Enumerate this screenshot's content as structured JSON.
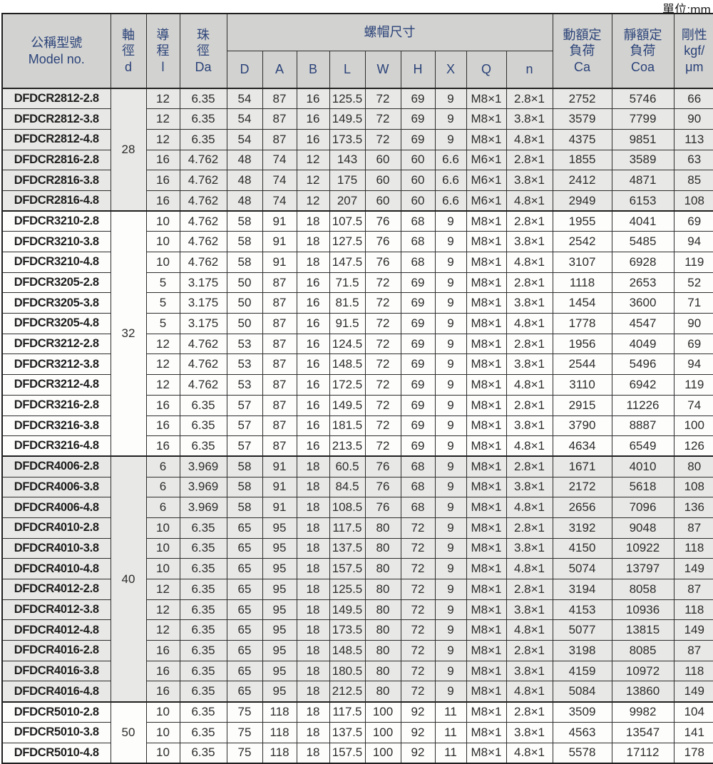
{
  "unit_label": "單位:mm",
  "header": {
    "model_zh": "公稱型號",
    "model_en": "Model no.",
    "shaft_lines": [
      "軸",
      "徑",
      "d"
    ],
    "lead_lines": [
      "導",
      "程",
      "l"
    ],
    "ball_lines": [
      "珠",
      "徑",
      "Da"
    ],
    "nut_group": "螺帽尺寸",
    "nut_cols": [
      "D",
      "A",
      "B",
      "L",
      "W",
      "H",
      "X",
      "Q",
      "n"
    ],
    "dynamic_lines": [
      "動額定",
      "負荷",
      "Ca"
    ],
    "static_lines": [
      "靜額定",
      "負荷",
      "Coa"
    ],
    "rigidity_lines": [
      "剛性",
      "kgf/",
      "μm"
    ]
  },
  "groups": [
    {
      "d": "28",
      "shade": "gray",
      "rows": [
        {
          "model": "DFDCR2812-2.8",
          "l": "12",
          "da": "6.35",
          "D": "54",
          "A": "87",
          "B": "16",
          "L": "125.5",
          "W": "72",
          "H": "69",
          "X": "9",
          "Q": "M8×1",
          "n": "2.8×1",
          "ca": "2752",
          "coa": "5746",
          "k": "66"
        },
        {
          "model": "DFDCR2812-3.8",
          "l": "12",
          "da": "6.35",
          "D": "54",
          "A": "87",
          "B": "16",
          "L": "149.5",
          "W": "72",
          "H": "69",
          "X": "9",
          "Q": "M8×1",
          "n": "3.8×1",
          "ca": "3579",
          "coa": "7799",
          "k": "90"
        },
        {
          "model": "DFDCR2812-4.8",
          "l": "12",
          "da": "6.35",
          "D": "54",
          "A": "87",
          "B": "16",
          "L": "173.5",
          "W": "72",
          "H": "69",
          "X": "9",
          "Q": "M8×1",
          "n": "4.8×1",
          "ca": "4375",
          "coa": "9851",
          "k": "113"
        },
        {
          "model": "DFDCR2816-2.8",
          "l": "16",
          "da": "4.762",
          "D": "48",
          "A": "74",
          "B": "12",
          "L": "143",
          "W": "60",
          "H": "60",
          "X": "6.6",
          "Q": "M6×1",
          "n": "2.8×1",
          "ca": "1855",
          "coa": "3589",
          "k": "63"
        },
        {
          "model": "DFDCR2816-3.8",
          "l": "16",
          "da": "4.762",
          "D": "48",
          "A": "74",
          "B": "12",
          "L": "175",
          "W": "60",
          "H": "60",
          "X": "6.6",
          "Q": "M6×1",
          "n": "3.8×1",
          "ca": "2412",
          "coa": "4871",
          "k": "85"
        },
        {
          "model": "DFDCR2816-4.8",
          "l": "16",
          "da": "4.762",
          "D": "48",
          "A": "74",
          "B": "12",
          "L": "207",
          "W": "60",
          "H": "60",
          "X": "6.6",
          "Q": "M6×1",
          "n": "4.8×1",
          "ca": "2949",
          "coa": "6153",
          "k": "108"
        }
      ]
    },
    {
      "d": "32",
      "shade": "white",
      "rows": [
        {
          "model": "DFDCR3210-2.8",
          "l": "10",
          "da": "4.762",
          "D": "58",
          "A": "91",
          "B": "18",
          "L": "107.5",
          "W": "76",
          "H": "68",
          "X": "9",
          "Q": "M8×1",
          "n": "2.8×1",
          "ca": "1955",
          "coa": "4041",
          "k": "69"
        },
        {
          "model": "DFDCR3210-3.8",
          "l": "10",
          "da": "4.762",
          "D": "58",
          "A": "91",
          "B": "18",
          "L": "127.5",
          "W": "76",
          "H": "68",
          "X": "9",
          "Q": "M8×1",
          "n": "3.8×1",
          "ca": "2542",
          "coa": "5485",
          "k": "94"
        },
        {
          "model": "DFDCR3210-4.8",
          "l": "10",
          "da": "4.762",
          "D": "58",
          "A": "91",
          "B": "18",
          "L": "147.5",
          "W": "76",
          "H": "68",
          "X": "9",
          "Q": "M8×1",
          "n": "4.8×1",
          "ca": "3107",
          "coa": "6928",
          "k": "119"
        },
        {
          "model": "DFDCR3205-2.8",
          "l": "5",
          "da": "3.175",
          "D": "50",
          "A": "87",
          "B": "16",
          "L": "71.5",
          "W": "72",
          "H": "69",
          "X": "9",
          "Q": "M8×1",
          "n": "2.8×1",
          "ca": "1118",
          "coa": "2653",
          "k": "52"
        },
        {
          "model": "DFDCR3205-3.8",
          "l": "5",
          "da": "3.175",
          "D": "50",
          "A": "87",
          "B": "16",
          "L": "81.5",
          "W": "72",
          "H": "69",
          "X": "9",
          "Q": "M8×1",
          "n": "3.8×1",
          "ca": "1454",
          "coa": "3600",
          "k": "71"
        },
        {
          "model": "DFDCR3205-4.8",
          "l": "5",
          "da": "3.175",
          "D": "50",
          "A": "87",
          "B": "16",
          "L": "91.5",
          "W": "72",
          "H": "69",
          "X": "9",
          "Q": "M8×1",
          "n": "4.8×1",
          "ca": "1778",
          "coa": "4547",
          "k": "90"
        },
        {
          "model": "DFDCR3212-2.8",
          "l": "12",
          "da": "4.762",
          "D": "53",
          "A": "87",
          "B": "16",
          "L": "124.5",
          "W": "72",
          "H": "69",
          "X": "9",
          "Q": "M8×1",
          "n": "2.8×1",
          "ca": "1956",
          "coa": "4049",
          "k": "69"
        },
        {
          "model": "DFDCR3212-3.8",
          "l": "12",
          "da": "4.762",
          "D": "53",
          "A": "87",
          "B": "16",
          "L": "148.5",
          "W": "72",
          "H": "69",
          "X": "9",
          "Q": "M8×1",
          "n": "3.8×1",
          "ca": "2544",
          "coa": "5496",
          "k": "94"
        },
        {
          "model": "DFDCR3212-4.8",
          "l": "12",
          "da": "4.762",
          "D": "53",
          "A": "87",
          "B": "16",
          "L": "172.5",
          "W": "72",
          "H": "69",
          "X": "9",
          "Q": "M8×1",
          "n": "4.8×1",
          "ca": "3110",
          "coa": "6942",
          "k": "119"
        },
        {
          "model": "DFDCR3216-2.8",
          "l": "16",
          "da": "6.35",
          "D": "57",
          "A": "87",
          "B": "16",
          "L": "149.5",
          "W": "72",
          "H": "69",
          "X": "9",
          "Q": "M8×1",
          "n": "2.8×1",
          "ca": "2915",
          "coa": "11226",
          "k": "74"
        },
        {
          "model": "DFDCR3216-3.8",
          "l": "16",
          "da": "6.35",
          "D": "57",
          "A": "87",
          "B": "16",
          "L": "181.5",
          "W": "72",
          "H": "69",
          "X": "9",
          "Q": "M8×1",
          "n": "3.8×1",
          "ca": "3790",
          "coa": "8887",
          "k": "100"
        },
        {
          "model": "DFDCR3216-4.8",
          "l": "16",
          "da": "6.35",
          "D": "57",
          "A": "87",
          "B": "16",
          "L": "213.5",
          "W": "72",
          "H": "69",
          "X": "9",
          "Q": "M8×1",
          "n": "4.8×1",
          "ca": "4634",
          "coa": "6549",
          "k": "126"
        }
      ]
    },
    {
      "d": "40",
      "shade": "gray",
      "rows": [
        {
          "model": "DFDCR4006-2.8",
          "l": "6",
          "da": "3.969",
          "D": "58",
          "A": "91",
          "B": "18",
          "L": "60.5",
          "W": "76",
          "H": "68",
          "X": "9",
          "Q": "M8×1",
          "n": "2.8×1",
          "ca": "1671",
          "coa": "4010",
          "k": "80"
        },
        {
          "model": "DFDCR4006-3.8",
          "l": "6",
          "da": "3.969",
          "D": "58",
          "A": "91",
          "B": "18",
          "L": "84.5",
          "W": "76",
          "H": "68",
          "X": "9",
          "Q": "M8×1",
          "n": "3.8×1",
          "ca": "2172",
          "coa": "5618",
          "k": "108"
        },
        {
          "model": "DFDCR4006-4.8",
          "l": "6",
          "da": "3.969",
          "D": "58",
          "A": "91",
          "B": "18",
          "L": "108.5",
          "W": "76",
          "H": "68",
          "X": "9",
          "Q": "M8×1",
          "n": "4.8×1",
          "ca": "2656",
          "coa": "7096",
          "k": "136"
        },
        {
          "model": "DFDCR4010-2.8",
          "l": "10",
          "da": "6.35",
          "D": "65",
          "A": "95",
          "B": "18",
          "L": "117.5",
          "W": "80",
          "H": "72",
          "X": "9",
          "Q": "M8×1",
          "n": "2.8×1",
          "ca": "3192",
          "coa": "9048",
          "k": "87"
        },
        {
          "model": "DFDCR4010-3.8",
          "l": "10",
          "da": "6.35",
          "D": "65",
          "A": "95",
          "B": "18",
          "L": "137.5",
          "W": "80",
          "H": "72",
          "X": "9",
          "Q": "M8×1",
          "n": "3.8×1",
          "ca": "4150",
          "coa": "10922",
          "k": "118"
        },
        {
          "model": "DFDCR4010-4.8",
          "l": "10",
          "da": "6.35",
          "D": "65",
          "A": "95",
          "B": "18",
          "L": "157.5",
          "W": "80",
          "H": "72",
          "X": "9",
          "Q": "M8×1",
          "n": "4.8×1",
          "ca": "5074",
          "coa": "13797",
          "k": "149"
        },
        {
          "model": "DFDCR4012-2.8",
          "l": "12",
          "da": "6.35",
          "D": "65",
          "A": "95",
          "B": "18",
          "L": "125.5",
          "W": "80",
          "H": "72",
          "X": "9",
          "Q": "M8×1",
          "n": "2.8×1",
          "ca": "3194",
          "coa": "8058",
          "k": "87"
        },
        {
          "model": "DFDCR4012-3.8",
          "l": "12",
          "da": "6.35",
          "D": "65",
          "A": "95",
          "B": "18",
          "L": "149.5",
          "W": "80",
          "H": "72",
          "X": "9",
          "Q": "M8×1",
          "n": "3.8×1",
          "ca": "4153",
          "coa": "10936",
          "k": "118"
        },
        {
          "model": "DFDCR4012-4.8",
          "l": "12",
          "da": "6.35",
          "D": "65",
          "A": "95",
          "B": "18",
          "L": "173.5",
          "W": "80",
          "H": "72",
          "X": "9",
          "Q": "M8×1",
          "n": "4.8×1",
          "ca": "5077",
          "coa": "13815",
          "k": "149"
        },
        {
          "model": "DFDCR4016-2.8",
          "l": "16",
          "da": "6.35",
          "D": "65",
          "A": "95",
          "B": "18",
          "L": "148.5",
          "W": "80",
          "H": "72",
          "X": "9",
          "Q": "M8×1",
          "n": "2.8×1",
          "ca": "3198",
          "coa": "8085",
          "k": "87"
        },
        {
          "model": "DFDCR4016-3.8",
          "l": "16",
          "da": "6.35",
          "D": "65",
          "A": "95",
          "B": "18",
          "L": "180.5",
          "W": "80",
          "H": "72",
          "X": "9",
          "Q": "M8×1",
          "n": "3.8×1",
          "ca": "4159",
          "coa": "10972",
          "k": "118"
        },
        {
          "model": "DFDCR4016-4.8",
          "l": "16",
          "da": "6.35",
          "D": "65",
          "A": "95",
          "B": "18",
          "L": "212.5",
          "W": "80",
          "H": "72",
          "X": "9",
          "Q": "M8×1",
          "n": "4.8×1",
          "ca": "5084",
          "coa": "13860",
          "k": "149"
        }
      ]
    },
    {
      "d": "50",
      "shade": "white",
      "rows": [
        {
          "model": "DFDCR5010-2.8",
          "l": "10",
          "da": "6.35",
          "D": "75",
          "A": "118",
          "B": "18",
          "L": "117.5",
          "W": "100",
          "H": "92",
          "X": "11",
          "Q": "M8×1",
          "n": "2.8×1",
          "ca": "3509",
          "coa": "9982",
          "k": "104"
        },
        {
          "model": "DFDCR5010-3.8",
          "l": "10",
          "da": "6.35",
          "D": "75",
          "A": "118",
          "B": "18",
          "L": "137.5",
          "W": "100",
          "H": "92",
          "X": "11",
          "Q": "M8×1",
          "n": "3.8×1",
          "ca": "4563",
          "coa": "13547",
          "k": "141"
        },
        {
          "model": "DFDCR5010-4.8",
          "l": "10",
          "da": "6.35",
          "D": "75",
          "A": "118",
          "B": "18",
          "L": "157.5",
          "W": "100",
          "H": "92",
          "X": "11",
          "Q": "M8×1",
          "n": "4.8×1",
          "ca": "5578",
          "coa": "17112",
          "k": "178"
        }
      ]
    }
  ]
}
